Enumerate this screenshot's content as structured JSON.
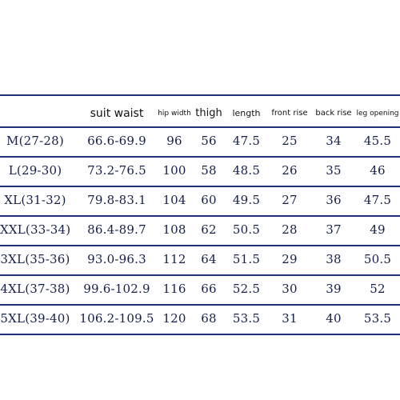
{
  "table": {
    "headers": {
      "suit_waist": "suit waist",
      "hip_width": "hip width",
      "thigh": "thigh",
      "length": "length",
      "front_rise": "front rise",
      "back_rise": "back rise",
      "leg_opening": "leg opening"
    },
    "rows": [
      {
        "size": "M(27-28)",
        "suit_waist": "66.6-69.9",
        "hip_width": "96",
        "thigh": "56",
        "length": "47.5",
        "front_rise": "25",
        "back_rise": "34",
        "leg_opening": "45.5"
      },
      {
        "size": "L(29-30)",
        "suit_waist": "73.2-76.5",
        "hip_width": "100",
        "thigh": "58",
        "length": "48.5",
        "front_rise": "26",
        "back_rise": "35",
        "leg_opening": "46"
      },
      {
        "size": "XL(31-32)",
        "suit_waist": "79.8-83.1",
        "hip_width": "104",
        "thigh": "60",
        "length": "49.5",
        "front_rise": "27",
        "back_rise": "36",
        "leg_opening": "47.5"
      },
      {
        "size": "XXL(33-34)",
        "suit_waist": "86.4-89.7",
        "hip_width": "108",
        "thigh": "62",
        "length": "50.5",
        "front_rise": "28",
        "back_rise": "37",
        "leg_opening": "49"
      },
      {
        "size": "3XL(35-36)",
        "suit_waist": "93.0-96.3",
        "hip_width": "112",
        "thigh": "64",
        "length": "51.5",
        "front_rise": "29",
        "back_rise": "38",
        "leg_opening": "50.5"
      },
      {
        "size": "4XL(37-38)",
        "suit_waist": "99.6-102.9",
        "hip_width": "116",
        "thigh": "66",
        "length": "52.5",
        "front_rise": "30",
        "back_rise": "39",
        "leg_opening": "52"
      },
      {
        "size": "5XL(39-40)",
        "suit_waist": "106.2-109.5",
        "hip_width": "120",
        "thigh": "68",
        "length": "53.5",
        "front_rise": "31",
        "back_rise": "40",
        "leg_opening": "53.5"
      }
    ]
  }
}
